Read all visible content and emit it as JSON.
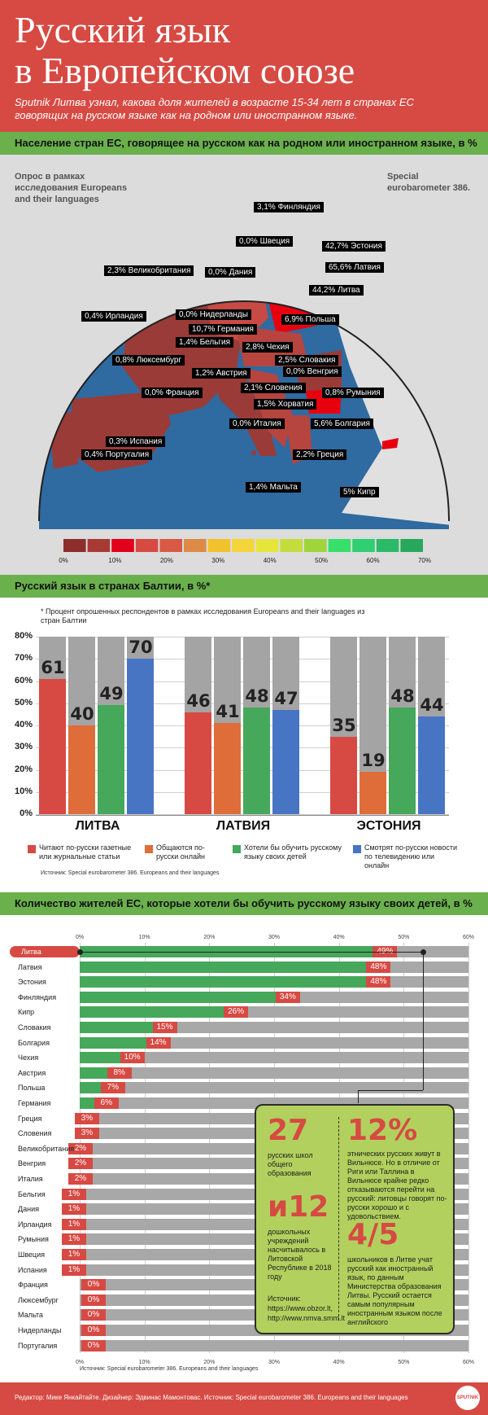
{
  "header": {
    "title": "Русский язык\nв Европейском союзе",
    "subtitle": "Sputnik Литва узнал, какова доля жителей в возрасте 15-34 лет в странах ЕС говорящих на русском языке как на родном или иностранном языке."
  },
  "map_section": {
    "bar_title": "Население стран ЕС, говорящее на русском как на родном или иностранном языке, в %",
    "survey_note": "Опрос в рамках исследования Europeans and their languages",
    "eurobarometer_note": "Special eurobarometer 386.",
    "labels": [
      {
        "id": "finland",
        "text": "3,1% Финляндия"
      },
      {
        "id": "sweden",
        "text": "0,0% Швеция"
      },
      {
        "id": "estonia",
        "text": "42,7% Эстония"
      },
      {
        "id": "uk",
        "text": "2,3% Великобритания"
      },
      {
        "id": "denmark",
        "text": "0,0% Дания"
      },
      {
        "id": "latvia",
        "text": "65,6% Латвия"
      },
      {
        "id": "lithuania",
        "text": "44,2% Литва"
      },
      {
        "id": "ireland",
        "text": "0,4% Ирландия"
      },
      {
        "id": "netherlands",
        "text": "0,0% Нидерланды"
      },
      {
        "id": "poland",
        "text": "6,9% Польша"
      },
      {
        "id": "germany",
        "text": "10,7% Германия"
      },
      {
        "id": "belgium",
        "text": "1,4% Бельгия"
      },
      {
        "id": "czech",
        "text": "2,8% Чехия"
      },
      {
        "id": "luxembourg",
        "text": "0,8% Люксембург"
      },
      {
        "id": "slovakia",
        "text": "2,5% Словакия"
      },
      {
        "id": "hungary",
        "text": "0,0% Венгрия"
      },
      {
        "id": "austria",
        "text": "1,2% Австрия"
      },
      {
        "id": "slovenia",
        "text": "2,1% Словения"
      },
      {
        "id": "france",
        "text": "0,0% Франция"
      },
      {
        "id": "romania",
        "text": "0,8% Румыния"
      },
      {
        "id": "croatia",
        "text": "1,5% Хорватия"
      },
      {
        "id": "italy",
        "text": "0,0% Италия"
      },
      {
        "id": "bulgaria",
        "text": "5,6% Болгария"
      },
      {
        "id": "spain",
        "text": "0,3% Испания"
      },
      {
        "id": "portugal",
        "text": "0,4% Португалия"
      },
      {
        "id": "greece",
        "text": "2,2% Греция"
      },
      {
        "id": "malta",
        "text": "1,4% Мальта"
      },
      {
        "id": "cyprus",
        "text": "5% Кипр"
      }
    ],
    "scale_ticks": [
      "0%",
      "10%",
      "20%",
      "30%",
      "40%",
      "50%",
      "60%",
      "70%"
    ],
    "scale_colors": [
      "#8e2e2b",
      "#a83a36",
      "#e2001a",
      "#d64a43",
      "#d85a45",
      "#de8a47",
      "#f2c12e",
      "#f4d63a",
      "#e6e63a",
      "#c4dc3c",
      "#9fd43a",
      "#36e06a",
      "#2fcf72",
      "#2bbb68",
      "#27a85c"
    ]
  },
  "chart_data": [
    {
      "type": "bar",
      "title": "Русский язык в странах Балтии, в %*",
      "note": "* Процент опрошенных респондентов в рамках исследования Europeans and their languages из стран Балтии",
      "categories": [
        "ЛИТВА",
        "ЛАТВИЯ",
        "ЭСТОНИЯ"
      ],
      "y_ticks": [
        "0%",
        "10%",
        "20%",
        "30%",
        "40%",
        "50%",
        "60%",
        "70%",
        "80%"
      ],
      "ylim": [
        0,
        80
      ],
      "series": [
        {
          "name": "Читают по-русски газетные или журнальные статьи",
          "color": "#d64a43",
          "values": [
            61,
            46,
            35
          ]
        },
        {
          "name": "Общаются по-русски онлайн",
          "color": "#de6d3a",
          "values": [
            40,
            41,
            19
          ]
        },
        {
          "name": "Хотели бы обучить русскому языку своих детей",
          "color": "#45a85a",
          "values": [
            49,
            48,
            48
          ]
        },
        {
          "name": "Смотрят по-русски новости по телевидению или онлайн",
          "color": "#4874c4",
          "values": [
            70,
            47,
            44
          ]
        }
      ],
      "source": "Источник: Special eurobarometer 386. Europeans and their languages"
    },
    {
      "type": "bar",
      "orientation": "horizontal",
      "title": "Количество жителей ЕС, которые хотели бы обучить русскому языку своих детей, в %",
      "x_ticks": [
        "0%",
        "10%",
        "20%",
        "30%",
        "40%",
        "50%",
        "60%"
      ],
      "xlim": [
        0,
        60
      ],
      "categories": [
        "Литва",
        "Латвия",
        "Эстония",
        "Финляндия",
        "Кипр",
        "Словакия",
        "Болгария",
        "Чехия",
        "Австрия",
        "Польша",
        "Германия",
        "Греция",
        "Словения",
        "Великобритания",
        "Венгрия",
        "Италия",
        "Бельгия",
        "Дания",
        "Ирландия",
        "Румыния",
        "Швеция",
        "Испания",
        "Франция",
        "Люксембург",
        "Мальта",
        "Нидерланды",
        "Португалия"
      ],
      "values": [
        49,
        48,
        48,
        34,
        26,
        15,
        14,
        10,
        8,
        7,
        6,
        3,
        3,
        2,
        2,
        2,
        1,
        1,
        1,
        1,
        1,
        1,
        0,
        0,
        0,
        0,
        0
      ],
      "value_labels": [
        "49%",
        "48%",
        "48%",
        "34%",
        "26%",
        "15%",
        "14%",
        "10%",
        "8%",
        "7%",
        "6%",
        "3%",
        "3%",
        "2%",
        "2%",
        "2%",
        "1%",
        "1%",
        "1%",
        "1%",
        "1%",
        "1%",
        "0%",
        "0%",
        "0%",
        "0%",
        "0%"
      ],
      "source": "Источник: Special eurobarometer 386. Europeans and their languages"
    }
  ],
  "infobox": {
    "n1": "27",
    "t1": "русских школ общего образования",
    "n2": "и12",
    "t2": "дошкольных учреждений насчитывалось в Литовской Республике в 2018 году",
    "src_label": "Источник:",
    "src1": "https://www.obzor.lt,",
    "src2": "http://www.nmva.smm.lt",
    "n3": "12%",
    "t3": "этнических русских живут в Вильнюсе. Но в отличие от Риги или Таллина в Вильнюсе крайне редко отказываются перейти на русский: литовцы говорят по-русски хорошо и с удовольствием.",
    "n4": "4/5",
    "t4": "школьников в Литве учат русский как иностранный язык, по данным Министерства образования Литвы. Русский остается самым популярным иностранным языком после английского"
  },
  "footer": {
    "text": "Редактор: Мике Янкайтайте.   Дизайнер: Эдвинас Мамонтовас.   Источник: Special eurobarometer 386. Europeans and their languages",
    "logo": "SPUTNIK"
  }
}
